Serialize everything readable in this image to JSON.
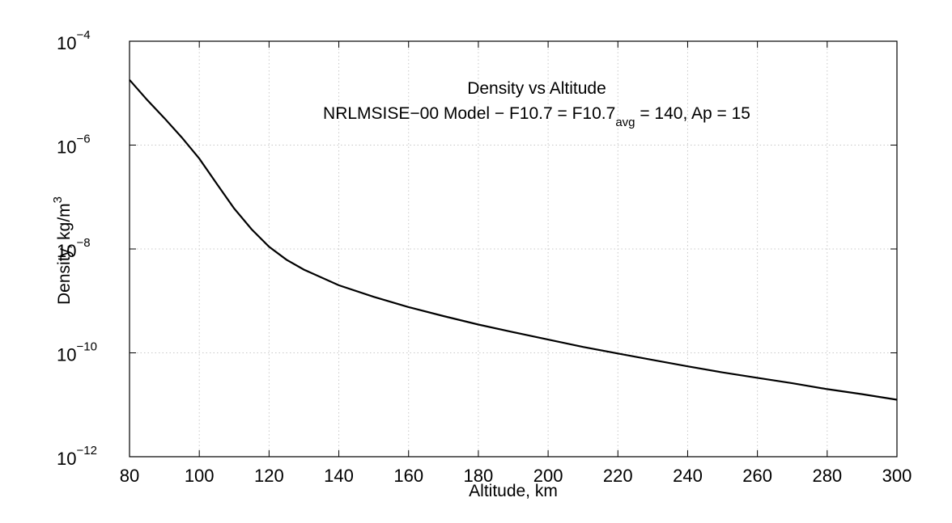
{
  "chart_data": {
    "type": "line",
    "title": "Density vs Altitude",
    "subtitle": {
      "prefix": "NRLMSISE−00 Model − F10.7 = F10.7",
      "subscript": "avg",
      "suffix": " = 140, Ap = 15"
    },
    "xlabel": "Altitude, km",
    "ylabel": {
      "text": "Density, kg/m",
      "superscript": "3"
    },
    "xlim": [
      80,
      300
    ],
    "ylim": [
      1e-12,
      0.0001
    ],
    "yscale": "log",
    "grid": true,
    "x_ticks": [
      80,
      100,
      120,
      140,
      160,
      180,
      200,
      220,
      240,
      260,
      280,
      300
    ],
    "x_tick_labels": [
      "80",
      "100",
      "120",
      "140",
      "160",
      "180",
      "200",
      "220",
      "240",
      "260",
      "280",
      "300"
    ],
    "y_ticks": [
      1e-12,
      1e-10,
      1e-08,
      1e-06,
      0.0001
    ],
    "y_tick_labels": [
      {
        "base": "10",
        "exp": "−12"
      },
      {
        "base": "10",
        "exp": "−10"
      },
      {
        "base": "10",
        "exp": "−8"
      },
      {
        "base": "10",
        "exp": "−6"
      },
      {
        "base": "10",
        "exp": "−4"
      }
    ],
    "series": [
      {
        "x": [
          80,
          85,
          90,
          95,
          100,
          105,
          110,
          115,
          120,
          125,
          130,
          140,
          150,
          160,
          170,
          180,
          190,
          200,
          210,
          220,
          230,
          240,
          250,
          260,
          270,
          280,
          290,
          300
        ],
        "y": [
          1.8e-05,
          7.5e-06,
          3.3e-06,
          1.4e-06,
          5.5e-07,
          1.8e-07,
          6e-08,
          2.4e-08,
          1.1e-08,
          6.2e-09,
          4e-09,
          2e-09,
          1.2e-09,
          7.6e-10,
          5.1e-10,
          3.5e-10,
          2.5e-10,
          1.8e-10,
          1.3e-10,
          9.7e-11,
          7.3e-11,
          5.5e-11,
          4.2e-11,
          3.3e-11,
          2.6e-11,
          2e-11,
          1.6e-11,
          1.25e-11
        ]
      }
    ]
  }
}
